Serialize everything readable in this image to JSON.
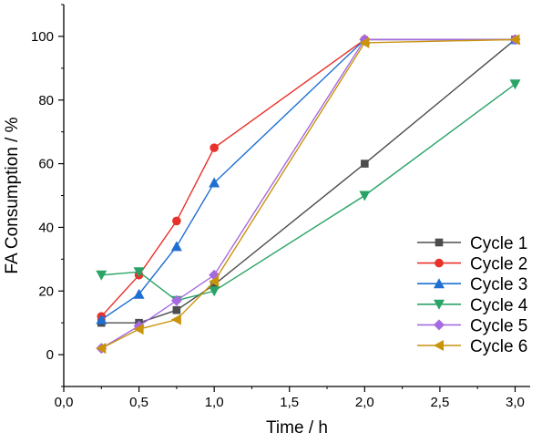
{
  "chart_data": {
    "type": "line",
    "xlabel": "Time / h",
    "ylabel": "FA Consumption / %",
    "xlim": [
      0,
      3.1
    ],
    "ylim": [
      -10,
      110
    ],
    "xticks": [
      0,
      0.5,
      1.0,
      1.5,
      2.0,
      2.5,
      3.0
    ],
    "xtick_labels": [
      "0,0",
      "0,5",
      "1,0",
      "1,5",
      "2,0",
      "2,5",
      "3,0"
    ],
    "yticks": [
      0,
      20,
      40,
      60,
      80,
      100
    ],
    "ytick_labels": [
      "0",
      "20",
      "40",
      "60",
      "80",
      "100"
    ],
    "grid": false,
    "legend_position": "bottom-right",
    "x": [
      0.25,
      0.5,
      0.75,
      1.0,
      2.0,
      3.0
    ],
    "series": [
      {
        "name": "Cycle 1",
        "values": [
          10,
          10,
          14,
          22,
          60,
          99
        ],
        "color": "#4d4d4d",
        "marker": "square"
      },
      {
        "name": "Cycle 2",
        "values": [
          12,
          25,
          42,
          65,
          99,
          99
        ],
        "color": "#e8312a",
        "marker": "circle"
      },
      {
        "name": "Cycle 3",
        "values": [
          11,
          19,
          34,
          54,
          99,
          99
        ],
        "color": "#1f6fd1",
        "marker": "triangle-up"
      },
      {
        "name": "Cycle 4",
        "values": [
          25,
          26,
          17,
          20,
          50,
          85
        ],
        "color": "#2aa366",
        "marker": "triangle-down"
      },
      {
        "name": "Cycle 5",
        "values": [
          2,
          9,
          17,
          25,
          99,
          99
        ],
        "color": "#a66ae0",
        "marker": "diamond"
      },
      {
        "name": "Cycle 6",
        "values": [
          2,
          8,
          11,
          23,
          98,
          99
        ],
        "color": "#c9930c",
        "marker": "triangle-left"
      }
    ]
  }
}
